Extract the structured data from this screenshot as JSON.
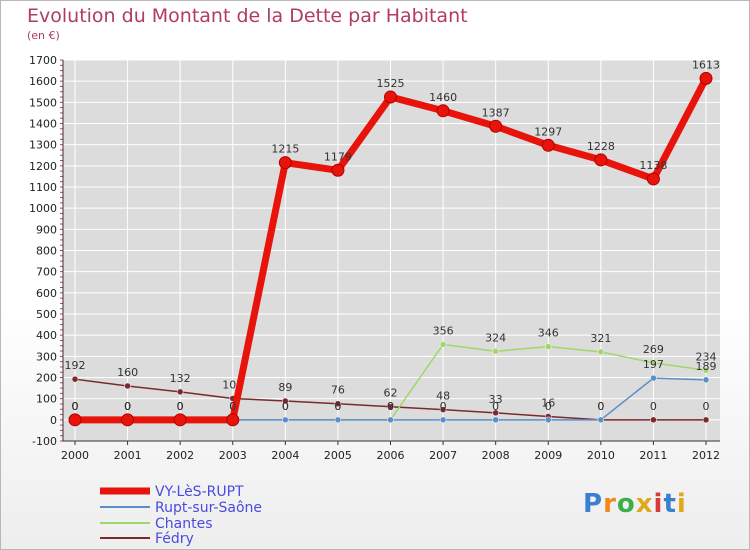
{
  "chart_data": {
    "type": "line",
    "title": "Evolution du Montant de la Dette par Habitant",
    "unit": "(en €)",
    "ylim": [
      -100,
      1700
    ],
    "yticks": [
      -100,
      0,
      100,
      200,
      300,
      400,
      500,
      600,
      700,
      800,
      900,
      1000,
      1100,
      1200,
      1300,
      1400,
      1500,
      1600,
      1700
    ],
    "categories": [
      "2000",
      "2001",
      "2002",
      "2003",
      "2004",
      "2005",
      "2006",
      "2007",
      "2008",
      "2009",
      "2010",
      "2011",
      "2012"
    ],
    "grid": true,
    "legend_position": "bottom-left",
    "series": [
      {
        "name": "VY-LèS-RUPT",
        "color": "#e8140c",
        "values": [
          0,
          0,
          0,
          0,
          1215,
          1179,
          1525,
          1460,
          1387,
          1297,
          1228,
          1138,
          1613
        ],
        "labels": [
          "0",
          "0",
          "0",
          "0",
          "1215",
          "1179",
          "1525",
          "1460",
          "1387",
          "1297",
          "1228",
          "1138",
          "1613"
        ]
      },
      {
        "name": "Rupt-sur-Saône",
        "color": "#5a8fc8",
        "values": [
          0,
          0,
          0,
          0,
          0,
          0,
          0,
          0,
          0,
          0,
          0,
          197,
          189
        ],
        "labels": [
          "0",
          "0",
          "0",
          "0",
          "0",
          "0",
          "0",
          "0",
          "0",
          "0",
          "0",
          "197",
          "189"
        ]
      },
      {
        "name": "Chantes",
        "color": "#9fd86a",
        "values": [
          0,
          0,
          0,
          0,
          0,
          0,
          0,
          356,
          324,
          346,
          321,
          269,
          234
        ],
        "labels": [
          "0",
          "0",
          "0",
          "0",
          "0",
          "0",
          "0",
          "356",
          "324",
          "346",
          "321",
          "269",
          "234"
        ]
      },
      {
        "name": "Fédry",
        "color": "#7a2a2a",
        "values": [
          192,
          160,
          132,
          101,
          89,
          76,
          62,
          48,
          33,
          16,
          0,
          0,
          0
        ],
        "labels": [
          "192",
          "160",
          "132",
          "101",
          "89",
          "76",
          "62",
          "48",
          "33",
          "16",
          "0",
          "0",
          "0"
        ]
      }
    ]
  },
  "logo": {
    "letters": [
      "P",
      "r",
      "o",
      "x",
      "i",
      "t",
      "i"
    ],
    "colors": [
      "#3b7fd0",
      "#f08a1c",
      "#3bb04a",
      "#e0a81c",
      "#d83a3a",
      "#3b7fd0",
      "#e0a81c"
    ]
  }
}
